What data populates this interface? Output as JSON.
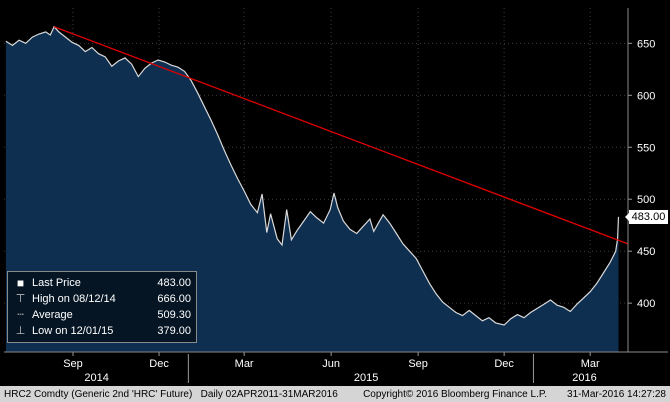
{
  "chart_data": {
    "type": "area",
    "title": "",
    "xlabel": "",
    "ylabel": "",
    "last_price": 483.0,
    "last_price_label": "483.00",
    "ylim": [
      353,
      684
    ],
    "yticks": [
      400,
      450,
      500,
      550,
      600,
      650
    ],
    "x_domain": [
      "2014-06-20",
      "2016-04-10"
    ],
    "xticks": [
      {
        "date": "2014-09-01",
        "label": "Sep"
      },
      {
        "date": "2014-12-01",
        "label": "Dec"
      },
      {
        "date": "2015-03-01",
        "label": "Mar"
      },
      {
        "date": "2015-06-01",
        "label": "Jun"
      },
      {
        "date": "2015-09-01",
        "label": "Sep"
      },
      {
        "date": "2015-12-01",
        "label": "Dec"
      },
      {
        "date": "2016-03-01",
        "label": "Mar"
      }
    ],
    "year_separators": [
      "2015-01-01",
      "2016-01-01"
    ],
    "year_labels": [
      {
        "center": "2014-09-26",
        "label": "2014"
      },
      {
        "center": "2015-07-08",
        "label": "2015"
      },
      {
        "center": "2016-02-24",
        "label": "2016"
      }
    ],
    "grid_color": "#3d3d3d",
    "background_color": "#000000",
    "series": [
      {
        "name": "Last Price",
        "color": "#d9d9d9",
        "fill": "#0f2f51",
        "points": [
          [
            "2014-06-22",
            652
          ],
          [
            "2014-06-29",
            648
          ],
          [
            "2014-07-06",
            653
          ],
          [
            "2014-07-13",
            650
          ],
          [
            "2014-07-20",
            656
          ],
          [
            "2014-07-27",
            659
          ],
          [
            "2014-08-03",
            661
          ],
          [
            "2014-08-08",
            658
          ],
          [
            "2014-08-12",
            666
          ],
          [
            "2014-08-17",
            661
          ],
          [
            "2014-08-24",
            656
          ],
          [
            "2014-08-31",
            651
          ],
          [
            "2014-09-07",
            648
          ],
          [
            "2014-09-14",
            642
          ],
          [
            "2014-09-21",
            646
          ],
          [
            "2014-09-28",
            640
          ],
          [
            "2014-10-05",
            637
          ],
          [
            "2014-10-12",
            628
          ],
          [
            "2014-10-19",
            633
          ],
          [
            "2014-10-26",
            636
          ],
          [
            "2014-11-02",
            630
          ],
          [
            "2014-11-09",
            618
          ],
          [
            "2014-11-16",
            626
          ],
          [
            "2014-11-23",
            631
          ],
          [
            "2014-11-30",
            634
          ],
          [
            "2014-12-07",
            632
          ],
          [
            "2014-12-14",
            629
          ],
          [
            "2014-12-21",
            627
          ],
          [
            "2014-12-28",
            623
          ],
          [
            "2015-01-04",
            614
          ],
          [
            "2015-01-11",
            602
          ],
          [
            "2015-01-18",
            589
          ],
          [
            "2015-01-25",
            576
          ],
          [
            "2015-02-01",
            562
          ],
          [
            "2015-02-08",
            547
          ],
          [
            "2015-02-15",
            533
          ],
          [
            "2015-02-22",
            520
          ],
          [
            "2015-03-01",
            508
          ],
          [
            "2015-03-08",
            495
          ],
          [
            "2015-03-15",
            487
          ],
          [
            "2015-03-20",
            505
          ],
          [
            "2015-03-25",
            468
          ],
          [
            "2015-03-29",
            486
          ],
          [
            "2015-04-05",
            462
          ],
          [
            "2015-04-10",
            456
          ],
          [
            "2015-04-15",
            490
          ],
          [
            "2015-04-20",
            461
          ],
          [
            "2015-04-26",
            470
          ],
          [
            "2015-05-03",
            479
          ],
          [
            "2015-05-10",
            488
          ],
          [
            "2015-05-17",
            482
          ],
          [
            "2015-05-24",
            477
          ],
          [
            "2015-05-31",
            490
          ],
          [
            "2015-06-04",
            506
          ],
          [
            "2015-06-08",
            492
          ],
          [
            "2015-06-14",
            479
          ],
          [
            "2015-06-21",
            471
          ],
          [
            "2015-06-28",
            467
          ],
          [
            "2015-07-05",
            474
          ],
          [
            "2015-07-12",
            481
          ],
          [
            "2015-07-16",
            469
          ],
          [
            "2015-07-21",
            477
          ],
          [
            "2015-07-26",
            485
          ],
          [
            "2015-08-02",
            477
          ],
          [
            "2015-08-09",
            467
          ],
          [
            "2015-08-16",
            457
          ],
          [
            "2015-08-23",
            450
          ],
          [
            "2015-08-30",
            443
          ],
          [
            "2015-09-06",
            431
          ],
          [
            "2015-09-13",
            419
          ],
          [
            "2015-09-20",
            409
          ],
          [
            "2015-09-27",
            401
          ],
          [
            "2015-10-04",
            396
          ],
          [
            "2015-10-11",
            391
          ],
          [
            "2015-10-18",
            388
          ],
          [
            "2015-10-25",
            393
          ],
          [
            "2015-11-01",
            388
          ],
          [
            "2015-11-08",
            383
          ],
          [
            "2015-11-15",
            386
          ],
          [
            "2015-11-22",
            381
          ],
          [
            "2015-12-01",
            379
          ],
          [
            "2015-12-08",
            385
          ],
          [
            "2015-12-15",
            389
          ],
          [
            "2015-12-22",
            386
          ],
          [
            "2015-12-29",
            391
          ],
          [
            "2016-01-05",
            395
          ],
          [
            "2016-01-12",
            399
          ],
          [
            "2016-01-19",
            403
          ],
          [
            "2016-01-26",
            398
          ],
          [
            "2016-02-02",
            396
          ],
          [
            "2016-02-09",
            392
          ],
          [
            "2016-02-16",
            399
          ],
          [
            "2016-02-23",
            405
          ],
          [
            "2016-03-01",
            411
          ],
          [
            "2016-03-08",
            419
          ],
          [
            "2016-03-15",
            429
          ],
          [
            "2016-03-22",
            439
          ],
          [
            "2016-03-28",
            450
          ],
          [
            "2016-03-30",
            462
          ],
          [
            "2016-03-31",
            483
          ]
        ]
      }
    ],
    "trendline": {
      "color": "#dd0000",
      "from": [
        "2014-08-12",
        666
      ],
      "to": [
        "2016-04-10",
        457
      ]
    }
  },
  "legend": {
    "rows": [
      {
        "icon": "■",
        "label": "Last Price",
        "value": "483.00"
      },
      {
        "icon": "⊤",
        "label": "High on 08/12/14",
        "value": "666.00"
      },
      {
        "icon": "┄",
        "label": "Average",
        "value": "509.30"
      },
      {
        "icon": "⊥",
        "label": "Low on 12/01/15",
        "value": "379.00"
      }
    ]
  },
  "footer": {
    "left": "HRC2 Comdty (Generic 2nd 'HRC' Future)   Daily 02APR2011-31MAR2016",
    "copyright": "Copyright© 2016 Bloomberg Finance L.P.",
    "timestamp": "31-Mar-2016 14:27:28"
  }
}
